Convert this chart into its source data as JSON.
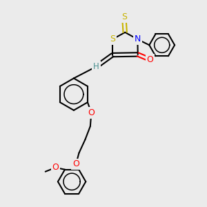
{
  "background_color": "#ebebeb",
  "atom_colors": {
    "S": "#c8b400",
    "N": "#0000ff",
    "O": "#ff0000",
    "H": "#4a9090",
    "C": "#000000"
  },
  "figsize": [
    3.0,
    3.0
  ],
  "dpi": 100
}
